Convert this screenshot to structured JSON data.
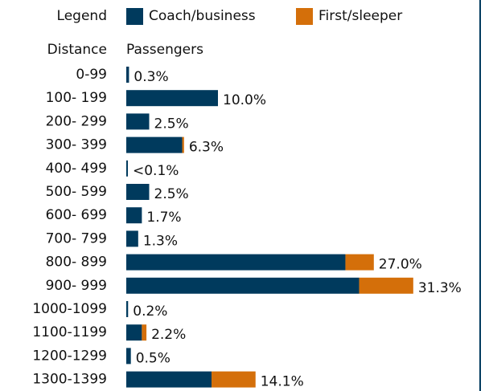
{
  "chart_data": {
    "type": "stacked_bar_horizontal",
    "legend_title": "Legend",
    "category_label": "Distance",
    "value_label": "Passengers",
    "categories": [
      "0-99",
      "100- 199",
      "200- 299",
      "300- 399",
      "400- 499",
      "500- 599",
      "600- 699",
      "700- 799",
      "800- 899",
      "900- 999",
      "1000-1099",
      "1100-1199",
      "1200-1299",
      "1300-1399"
    ],
    "series": [
      {
        "name": "Coach/business",
        "color": "#003a5d",
        "values": [
          0.3,
          10.0,
          2.5,
          6.1,
          0.05,
          2.5,
          1.7,
          1.3,
          23.9,
          25.4,
          0.2,
          1.7,
          0.5,
          9.3
        ]
      },
      {
        "name": "First/sleeper",
        "color": "#d46f0a",
        "values": [
          0,
          0,
          0,
          0.2,
          0,
          0,
          0,
          0,
          3.1,
          5.9,
          0,
          0.5,
          0,
          4.8
        ]
      }
    ],
    "totals": [
      0.3,
      10.0,
      2.5,
      6.3,
      0.05,
      2.5,
      1.7,
      1.3,
      27.0,
      31.3,
      0.2,
      2.2,
      0.5,
      14.1
    ],
    "value_labels": [
      "0.3%",
      "10.0%",
      "2.5%",
      "6.3%",
      "<0.1%",
      "2.5%",
      "1.7%",
      "1.3%",
      "27.0%",
      "31.3%",
      "0.2%",
      "2.2%",
      "0.5%",
      "14.1%"
    ]
  }
}
